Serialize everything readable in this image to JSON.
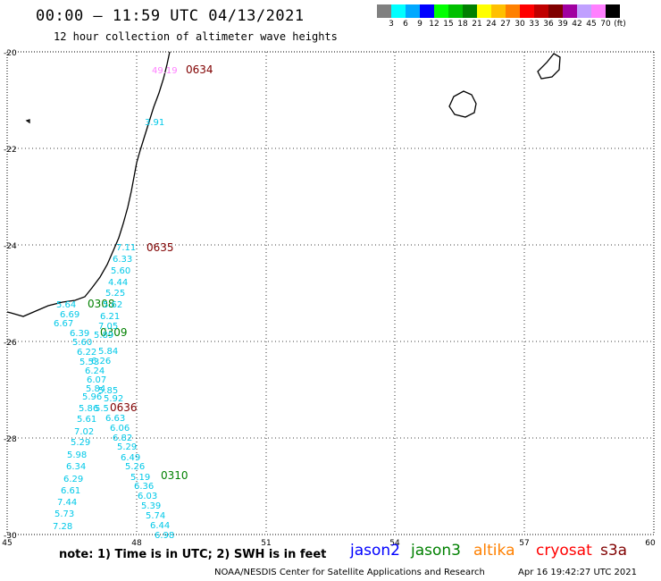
{
  "header": {
    "title": "00:00 – 11:59 UTC 04/13/2021",
    "subtitle": "12 hour collection of altimeter wave heights"
  },
  "legend": {
    "colors": [
      "#808080",
      "#00ffff",
      "#00a8ff",
      "#0000ff",
      "#00ff00",
      "#00c000",
      "#008000",
      "#ffff00",
      "#ffc000",
      "#ff8000",
      "#ff0000",
      "#c00000",
      "#800000",
      "#a000a0",
      "#c0a0ff",
      "#ff80ff",
      "#000000"
    ],
    "labels": [
      "3",
      "6",
      "9",
      "12",
      "15",
      "18",
      "21",
      "24",
      "27",
      "30",
      "33",
      "36",
      "39",
      "42",
      "45",
      "70",
      "(ft)"
    ]
  },
  "axes": {
    "lat_ticks": [
      "-20",
      "-22",
      "-24",
      "-26",
      "-28",
      "-30"
    ],
    "lon_ticks": [
      "45",
      "48",
      "51",
      "54",
      "57",
      "60"
    ]
  },
  "pass_labels": [
    {
      "text": "0634",
      "color": "#800000"
    },
    {
      "text": "0635",
      "color": "#800000"
    },
    {
      "text": "0308",
      "color": "#008000"
    },
    {
      "text": "0309",
      "color": "#008000"
    },
    {
      "text": "0636",
      "color": "#800000"
    },
    {
      "text": "0310",
      "color": "#008000"
    }
  ],
  "wave_heights": [
    {
      "text": "49.19",
      "color": "#ff80ff"
    },
    {
      "text": "3.91",
      "color": "#00c8e8"
    },
    {
      "text": "7.11",
      "color": "#00c8e8"
    },
    {
      "text": "6.33",
      "color": "#00c8e8"
    },
    {
      "text": "5.60",
      "color": "#00c8e8"
    },
    {
      "text": "4.44",
      "color": "#00c8e8"
    },
    {
      "text": "5.25",
      "color": "#00c8e8"
    },
    {
      "text": "5.64",
      "color": "#00c8e8"
    },
    {
      "text": "5.62",
      "color": "#00c8e8"
    },
    {
      "text": "6.69",
      "color": "#00c8e8"
    },
    {
      "text": "6.21",
      "color": "#00c8e8"
    },
    {
      "text": "6.67",
      "color": "#00c8e8"
    },
    {
      "text": "7.05",
      "color": "#00c8e8"
    },
    {
      "text": "6.39",
      "color": "#00c8e8"
    },
    {
      "text": "5.89",
      "color": "#00c8e8"
    },
    {
      "text": "5.60",
      "color": "#00c8e8"
    },
    {
      "text": "6.22",
      "color": "#00c8e8"
    },
    {
      "text": "5.84",
      "color": "#00c8e8"
    },
    {
      "text": "5.53",
      "color": "#00c8e8"
    },
    {
      "text": "6.26",
      "color": "#00c8e8"
    },
    {
      "text": "6.24",
      "color": "#00c8e8"
    },
    {
      "text": "6.07",
      "color": "#00c8e8"
    },
    {
      "text": "5.84",
      "color": "#00c8e8"
    },
    {
      "text": "5.85",
      "color": "#00c8e8"
    },
    {
      "text": "5.96",
      "color": "#00c8e8"
    },
    {
      "text": "5.92",
      "color": "#00c8e8"
    },
    {
      "text": "5.86",
      "color": "#00c8e8"
    },
    {
      "text": "5.5",
      "color": "#00c8e8"
    },
    {
      "text": "5.61",
      "color": "#00c8e8"
    },
    {
      "text": "6.63",
      "color": "#00c8e8"
    },
    {
      "text": "7.02",
      "color": "#00c8e8"
    },
    {
      "text": "6.06",
      "color": "#00c8e8"
    },
    {
      "text": "6.82",
      "color": "#00c8e8"
    },
    {
      "text": "5.29",
      "color": "#00c8e8"
    },
    {
      "text": "5.29",
      "color": "#00c8e8"
    },
    {
      "text": "5.98",
      "color": "#00c8e8"
    },
    {
      "text": "6.49",
      "color": "#00c8e8"
    },
    {
      "text": "6.34",
      "color": "#00c8e8"
    },
    {
      "text": "5.26",
      "color": "#00c8e8"
    },
    {
      "text": "6.29",
      "color": "#00c8e8"
    },
    {
      "text": "5.19",
      "color": "#00c8e8"
    },
    {
      "text": "6.61",
      "color": "#00c8e8"
    },
    {
      "text": "6.36",
      "color": "#00c8e8"
    },
    {
      "text": "6.03",
      "color": "#00c8e8"
    },
    {
      "text": "7.44",
      "color": "#00c8e8"
    },
    {
      "text": "5.39",
      "color": "#00c8e8"
    },
    {
      "text": "5.73",
      "color": "#00c8e8"
    },
    {
      "text": "5.74",
      "color": "#00c8e8"
    },
    {
      "text": "7.28",
      "color": "#00c8e8"
    },
    {
      "text": "6.44",
      "color": "#00c8e8"
    },
    {
      "text": "6.98",
      "color": "#00c8e8"
    }
  ],
  "footer": {
    "note": "note:  1) Time is in UTC;  2) SWH is in feet",
    "missions": [
      {
        "name": "jason2",
        "color": "#0000ff"
      },
      {
        "name": "jason3",
        "color": "#008000"
      },
      {
        "name": "altika",
        "color": "#ff8000"
      },
      {
        "name": "cryosat",
        "color": "#ff0000"
      },
      {
        "name": "s3a",
        "color": "#800000"
      }
    ],
    "credit": "NOAA/NESDIS Center for Satellite Applications and Research",
    "generated": "Apr 16 19:42:27 UTC 2021"
  }
}
